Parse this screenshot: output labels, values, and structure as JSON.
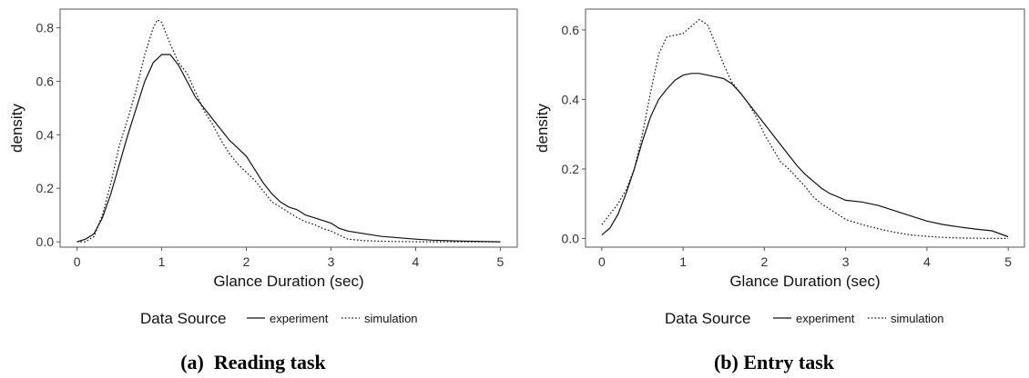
{
  "chart_data": [
    {
      "type": "line",
      "caption": "(a) Reading task",
      "xlabel": "Glance Duration (sec)",
      "ylabel": "density",
      "xlim": [
        -0.2,
        5.2
      ],
      "ylim": [
        -0.02,
        0.87
      ],
      "xticks": [
        0,
        1,
        2,
        3,
        4,
        5
      ],
      "yticks": [
        0.0,
        0.2,
        0.4,
        0.6,
        0.8
      ],
      "ytick_labels": [
        "0.0",
        "0.2",
        "0.4",
        "0.6",
        "0.8"
      ],
      "grid": true,
      "legend": {
        "title": "Data Source",
        "placement": "bottom"
      },
      "series": [
        {
          "name": "experiment",
          "style": "solid",
          "x": [
            0,
            0.1,
            0.2,
            0.3,
            0.4,
            0.5,
            0.6,
            0.7,
            0.8,
            0.9,
            1.0,
            1.1,
            1.2,
            1.3,
            1.4,
            1.5,
            1.6,
            1.7,
            1.8,
            1.9,
            2.0,
            2.1,
            2.2,
            2.3,
            2.4,
            2.5,
            2.6,
            2.7,
            2.8,
            2.9,
            3.0,
            3.1,
            3.2,
            3.4,
            3.6,
            3.8,
            4.0,
            4.2,
            4.5,
            5.0
          ],
          "y": [
            0.0,
            0.01,
            0.03,
            0.09,
            0.18,
            0.29,
            0.4,
            0.5,
            0.6,
            0.67,
            0.7,
            0.7,
            0.66,
            0.6,
            0.54,
            0.5,
            0.46,
            0.42,
            0.38,
            0.35,
            0.32,
            0.27,
            0.22,
            0.18,
            0.15,
            0.13,
            0.12,
            0.1,
            0.09,
            0.08,
            0.07,
            0.05,
            0.04,
            0.03,
            0.02,
            0.015,
            0.01,
            0.006,
            0.003,
            0.0
          ]
        },
        {
          "name": "simulation",
          "style": "dotted",
          "x": [
            0,
            0.1,
            0.2,
            0.3,
            0.4,
            0.5,
            0.6,
            0.7,
            0.8,
            0.9,
            0.95,
            1.0,
            1.1,
            1.2,
            1.3,
            1.4,
            1.5,
            1.6,
            1.7,
            1.8,
            1.9,
            2.0,
            2.1,
            2.2,
            2.3,
            2.4,
            2.5,
            2.6,
            2.7,
            2.8,
            2.9,
            3.0,
            3.1,
            3.2,
            3.4,
            3.6,
            3.8,
            4.0,
            5.0
          ],
          "y": [
            0.0,
            0.0,
            0.02,
            0.1,
            0.22,
            0.36,
            0.46,
            0.57,
            0.7,
            0.8,
            0.83,
            0.82,
            0.74,
            0.67,
            0.63,
            0.56,
            0.49,
            0.44,
            0.38,
            0.33,
            0.29,
            0.26,
            0.23,
            0.19,
            0.15,
            0.13,
            0.11,
            0.09,
            0.075,
            0.065,
            0.05,
            0.04,
            0.025,
            0.01,
            0.004,
            0.002,
            0.001,
            0.0,
            0.0
          ]
        }
      ]
    },
    {
      "type": "line",
      "caption": "(b) Entry task",
      "xlabel": "Glance Duration (sec)",
      "ylabel": "density",
      "xlim": [
        -0.2,
        5.2
      ],
      "ylim": [
        -0.025,
        0.66
      ],
      "xticks": [
        0,
        1,
        2,
        3,
        4,
        5
      ],
      "yticks": [
        0.0,
        0.2,
        0.4,
        0.6
      ],
      "ytick_labels": [
        "0.0",
        "0.2",
        "0.4",
        "0.6"
      ],
      "grid": true,
      "legend": {
        "title": "Data Source",
        "placement": "bottom"
      },
      "series": [
        {
          "name": "experiment",
          "style": "solid",
          "x": [
            0,
            0.1,
            0.2,
            0.3,
            0.4,
            0.5,
            0.6,
            0.7,
            0.8,
            0.9,
            1.0,
            1.1,
            1.2,
            1.3,
            1.4,
            1.5,
            1.6,
            1.7,
            1.8,
            1.9,
            2.0,
            2.1,
            2.2,
            2.3,
            2.4,
            2.5,
            2.6,
            2.7,
            2.8,
            2.9,
            3.0,
            3.2,
            3.4,
            3.6,
            3.8,
            4.0,
            4.2,
            4.4,
            4.6,
            4.8,
            5.0
          ],
          "y": [
            0.01,
            0.03,
            0.07,
            0.13,
            0.2,
            0.28,
            0.35,
            0.4,
            0.43,
            0.455,
            0.47,
            0.475,
            0.475,
            0.47,
            0.465,
            0.46,
            0.445,
            0.42,
            0.39,
            0.36,
            0.33,
            0.3,
            0.27,
            0.24,
            0.21,
            0.185,
            0.165,
            0.145,
            0.13,
            0.12,
            0.11,
            0.105,
            0.095,
            0.08,
            0.065,
            0.05,
            0.04,
            0.033,
            0.027,
            0.022,
            0.005
          ]
        },
        {
          "name": "simulation",
          "style": "dotted",
          "x": [
            0,
            0.1,
            0.2,
            0.3,
            0.4,
            0.5,
            0.6,
            0.7,
            0.8,
            0.9,
            1.0,
            1.05,
            1.1,
            1.2,
            1.3,
            1.4,
            1.5,
            1.6,
            1.7,
            1.8,
            1.9,
            2.0,
            2.1,
            2.2,
            2.3,
            2.4,
            2.5,
            2.6,
            2.7,
            2.8,
            2.9,
            3.0,
            3.2,
            3.4,
            3.6,
            3.8,
            4.0,
            4.2,
            4.5,
            5.0
          ],
          "y": [
            0.04,
            0.07,
            0.1,
            0.14,
            0.2,
            0.3,
            0.42,
            0.53,
            0.58,
            0.585,
            0.59,
            0.6,
            0.61,
            0.63,
            0.615,
            0.56,
            0.5,
            0.45,
            0.42,
            0.39,
            0.35,
            0.3,
            0.26,
            0.22,
            0.2,
            0.175,
            0.15,
            0.12,
            0.1,
            0.085,
            0.07,
            0.055,
            0.04,
            0.028,
            0.018,
            0.01,
            0.006,
            0.003,
            0.001,
            0.0
          ]
        }
      ]
    }
  ]
}
